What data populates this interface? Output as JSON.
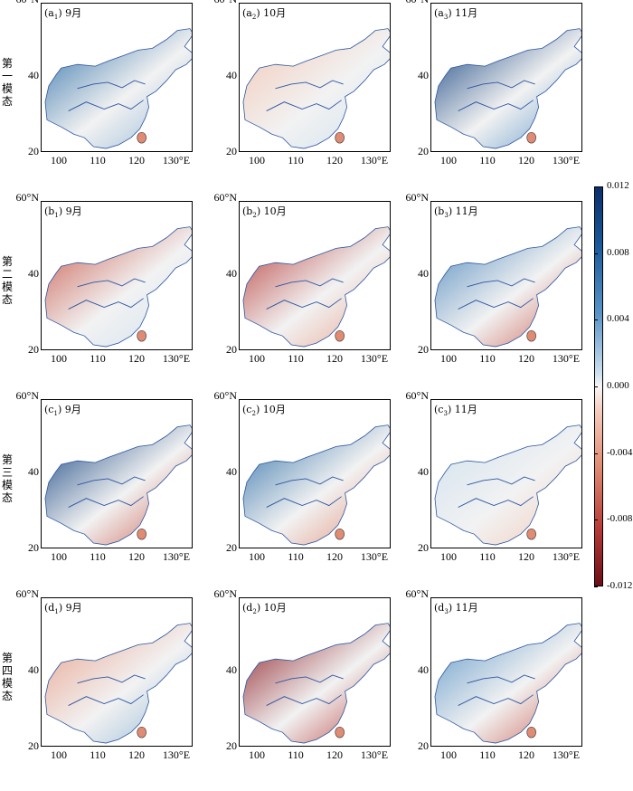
{
  "rows": [
    {
      "row_label": "第一模态",
      "panels": [
        {
          "letter": "a",
          "sub": "1",
          "month": "9月"
        },
        {
          "letter": "a",
          "sub": "2",
          "month": "10月"
        },
        {
          "letter": "a",
          "sub": "3",
          "month": "11月"
        }
      ]
    },
    {
      "row_label": "第二模态",
      "panels": [
        {
          "letter": "b",
          "sub": "1",
          "month": "9月"
        },
        {
          "letter": "b",
          "sub": "2",
          "month": "10月"
        },
        {
          "letter": "b",
          "sub": "3",
          "month": "11月"
        }
      ]
    },
    {
      "row_label": "第三模态",
      "panels": [
        {
          "letter": "c",
          "sub": "1",
          "month": "9月"
        },
        {
          "letter": "c",
          "sub": "2",
          "month": "10月"
        },
        {
          "letter": "c",
          "sub": "3",
          "month": "11月"
        }
      ]
    },
    {
      "row_label": "第四模态",
      "panels": [
        {
          "letter": "d",
          "sub": "1",
          "month": "9月"
        },
        {
          "letter": "d",
          "sub": "2",
          "month": "10月"
        },
        {
          "letter": "d",
          "sub": "3",
          "month": "11月"
        }
      ]
    }
  ],
  "lat_ticks": [
    "60°N",
    "40",
    "20"
  ],
  "lon_ticks": [
    "100",
    "110",
    "120",
    "130°E"
  ],
  "colorbar": {
    "ticks": [
      "0.012",
      "0.008",
      "0.004",
      "0.000",
      "-0.004",
      "-0.008",
      "-0.012"
    ],
    "colors": [
      "#0a2f6b",
      "#1b5a9c",
      "#5b95c7",
      "#f6f6f6",
      "#e08b73",
      "#b53a37",
      "#6d0d16"
    ]
  }
}
